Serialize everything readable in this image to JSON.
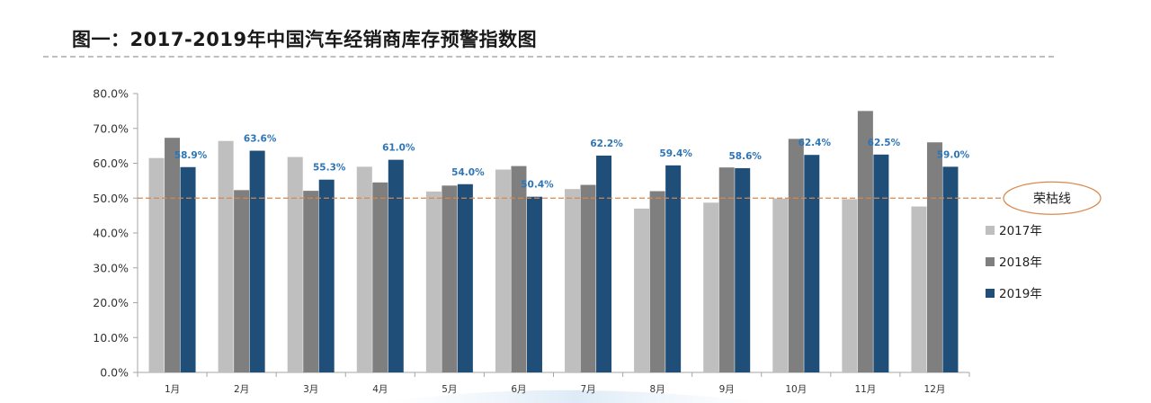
{
  "title": "图一：2017-2019年中国汽车经销商库存预警指数图",
  "chart_data": {
    "type": "bar",
    "categories": [
      "1月",
      "2月",
      "3月",
      "4月",
      "5月",
      "6月",
      "7月",
      "8月",
      "9月",
      "10月",
      "11月",
      "12月"
    ],
    "series": [
      {
        "name": "2017年",
        "color": "#bfbfbf",
        "values": [
          61.5,
          66.4,
          61.8,
          59.0,
          51.9,
          58.2,
          52.6,
          47.0,
          48.7,
          49.9,
          49.7,
          47.6
        ]
      },
      {
        "name": "2018年",
        "color": "#7f7f7f",
        "values": [
          67.3,
          52.3,
          52.1,
          54.5,
          53.6,
          59.2,
          53.8,
          52.0,
          58.8,
          67.0,
          75.0,
          66.0
        ]
      },
      {
        "name": "2019年",
        "color": "#1f4e79",
        "values": [
          58.9,
          63.6,
          55.3,
          61.0,
          54.0,
          50.4,
          62.2,
          59.4,
          58.6,
          62.4,
          62.5,
          59.0
        ]
      }
    ],
    "data_labels_2019": [
      "58.9%",
      "63.6%",
      "55.3%",
      "61.0%",
      "54.0%",
      "50.4%",
      "62.2%",
      "59.4%",
      "58.6%",
      "62.4%",
      "62.5%",
      "59.0%"
    ],
    "ylim": [
      0,
      80
    ],
    "yticks": [
      "0.0%",
      "10.0%",
      "20.0%",
      "30.0%",
      "40.0%",
      "50.0%",
      "60.0%",
      "70.0%",
      "80.0%"
    ],
    "reference_line": {
      "value": 50,
      "label": "荣枯线",
      "color": "#d9884a"
    },
    "legend_position": "right",
    "grid": false
  }
}
